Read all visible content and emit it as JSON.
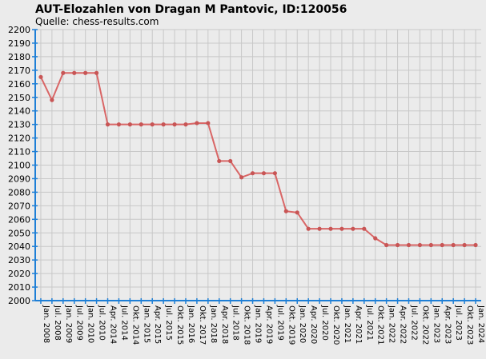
{
  "chart_data": {
    "type": "line",
    "title": "AUT-Elozahlen von Dragan M Pantovic, ID:120056",
    "subtitle": "Quelle: chess-results.com",
    "ylim": [
      2000,
      2200
    ],
    "y_ticks": [
      2000,
      2010,
      2020,
      2030,
      2040,
      2050,
      2060,
      2070,
      2080,
      2090,
      2100,
      2110,
      2120,
      2130,
      2140,
      2150,
      2160,
      2170,
      2180,
      2190,
      2200
    ],
    "grid": true,
    "categories": [
      "Jan. 2008",
      "Jul. 2008",
      "Jan. 2009",
      "Jul. 2009",
      "Jan. 2010",
      "Jul. 2010",
      "Apr. 2014",
      "Jul. 2014",
      "Okt. 2014",
      "Jan. 2015",
      "Apr. 2015",
      "Jul. 2015",
      "Okt. 2015",
      "Jan. 2016",
      "Okt. 2017",
      "Jan. 2018",
      "Apr. 2018",
      "Jul. 2018",
      "Okt. 2018",
      "Jan. 2019",
      "Apr. 2019",
      "Jul. 2019",
      "Okt. 2019",
      "Jan. 2020",
      "Apr. 2020",
      "Jul. 2020",
      "Okt. 2020",
      "Jan. 2021",
      "Apr. 2021",
      "Jul. 2021",
      "Okt. 2021",
      "Jan. 2022",
      "Apr. 2022",
      "Jul. 2022",
      "Okt. 2022",
      "Jan. 2023",
      "Apr. 2023",
      "Jul. 2023",
      "Okt. 2023",
      "Jan. 2024"
    ],
    "series": [
      {
        "values": [
          2165,
          2148,
          2168,
          2168,
          2168,
          2168,
          2130,
          2130,
          2130,
          2130,
          2130,
          2130,
          2130,
          2130,
          2131,
          2131,
          2103,
          2103,
          2091,
          2094,
          2094,
          2094,
          2066,
          2065,
          2053,
          2053,
          2053,
          2053,
          2053,
          2053,
          2046,
          2041,
          2041,
          2041,
          2041,
          2041,
          2041,
          2041,
          2041,
          2041
        ]
      }
    ]
  },
  "colors": {
    "line": "#d96666",
    "marker": "#c85555",
    "axis": "#1e7fd6",
    "grid": "#c8c8c8",
    "background": "#ebebeb"
  }
}
